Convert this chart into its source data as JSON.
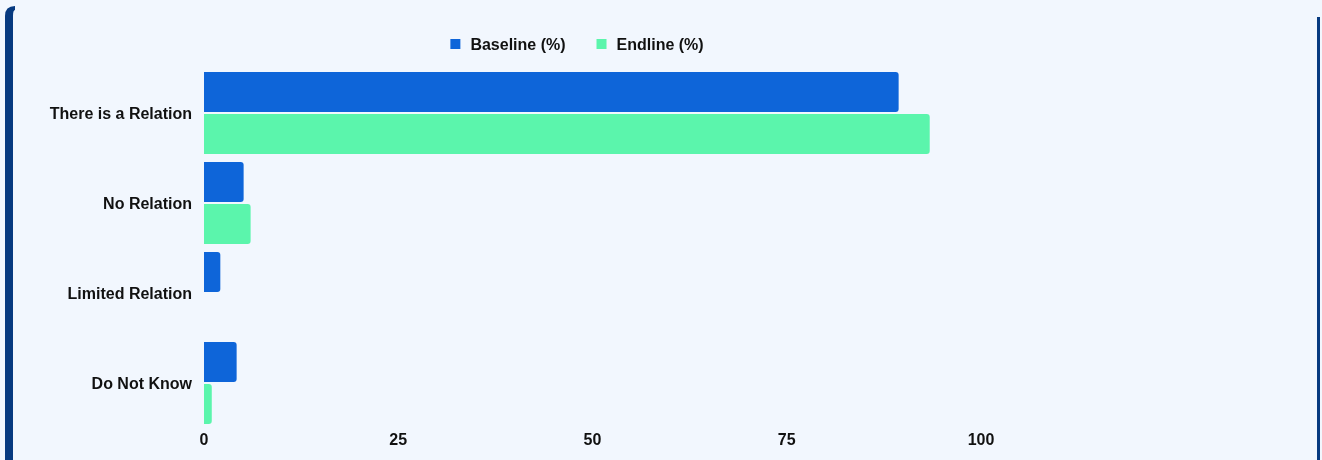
{
  "chart_data": {
    "type": "bar",
    "orientation": "horizontal",
    "categories": [
      "There is a Relation",
      "No Relation",
      "Limited Relation",
      "Do Not Know"
    ],
    "series": [
      {
        "name": "Baseline (%)",
        "color": "#0e65d9",
        "values": [
          89.4,
          5.1,
          2.1,
          4.2
        ]
      },
      {
        "name": "Endline (%)",
        "color": "#5bf5ac",
        "values": [
          93.4,
          6.0,
          0,
          1.0
        ]
      }
    ],
    "xlim": [
      0,
      100
    ],
    "xticks": [
      0,
      25,
      50,
      75,
      100
    ],
    "legend": "top"
  }
}
